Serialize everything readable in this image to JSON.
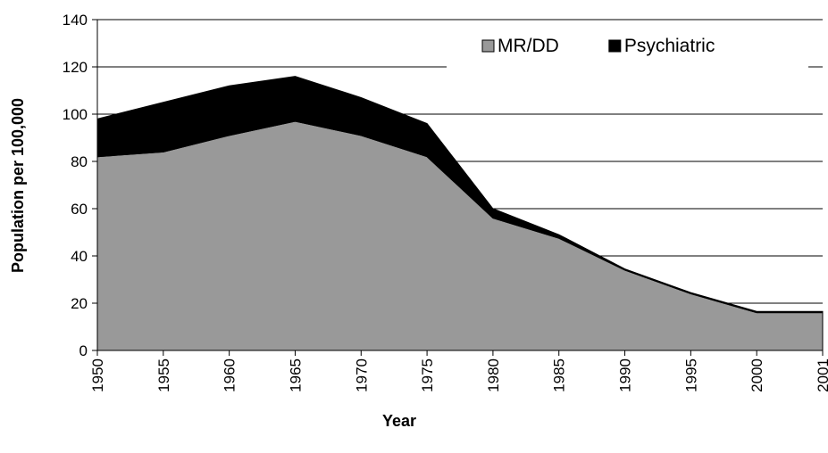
{
  "chart_data": {
    "type": "stacked_area",
    "xlabel": "Year",
    "ylabel": "Population per 100,000",
    "categories": [
      "1950",
      "1955",
      "1960",
      "1965",
      "1970",
      "1975",
      "1980",
      "1985",
      "1990",
      "1995",
      "2000",
      "2001"
    ],
    "series": [
      {
        "name": "MR/DD",
        "color": "#999999",
        "values": [
          82,
          84,
          91,
          97,
          91,
          82,
          56,
          47.5,
          34,
          24,
          16,
          16
        ]
      },
      {
        "name": "Psychiatric",
        "color": "#000000",
        "values": [
          16,
          21,
          21,
          19,
          16,
          14,
          4,
          1.5,
          0.5,
          0.5,
          0.5,
          0.5
        ]
      }
    ],
    "ylim": [
      0,
      140
    ],
    "yticks": [
      0,
      20,
      40,
      60,
      80,
      100,
      120,
      140
    ],
    "grid": true,
    "legend": "upper right"
  }
}
